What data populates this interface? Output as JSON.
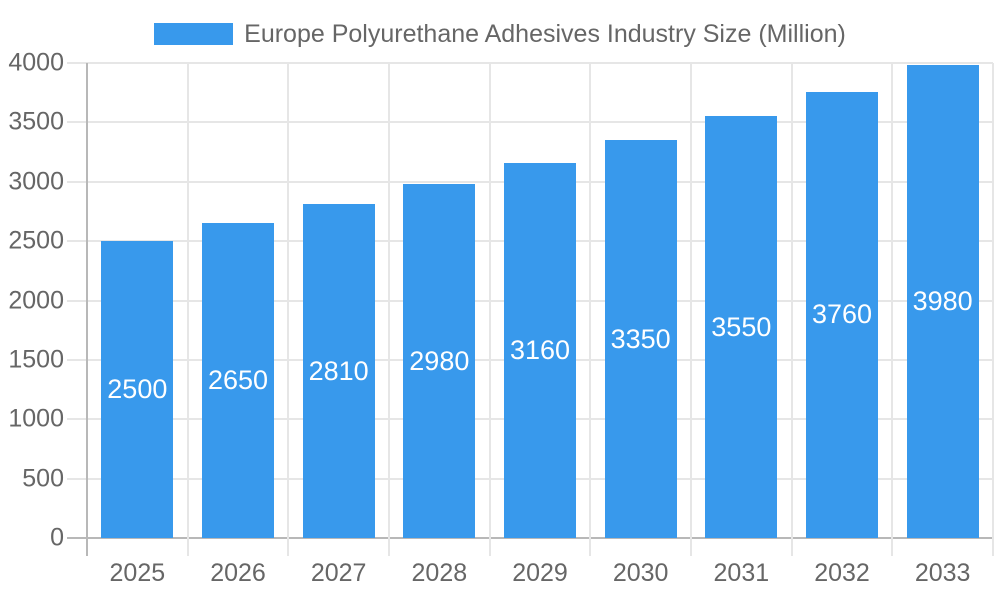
{
  "legend": {
    "label": "Europe Polyurethane Adhesives Industry Size (Million)"
  },
  "chart_data": {
    "type": "bar",
    "title": "Europe Polyurethane Adhesives Industry Size (Million)",
    "categories": [
      "2025",
      "2026",
      "2027",
      "2028",
      "2029",
      "2030",
      "2031",
      "2032",
      "2033"
    ],
    "values": [
      2500,
      2650,
      2810,
      2980,
      3160,
      3350,
      3550,
      3760,
      3980
    ],
    "value_labels": [
      "2500",
      "2650",
      "2810",
      "2980",
      "3160",
      "3350",
      "3550",
      "3760",
      "3980"
    ],
    "xlabel": "",
    "ylabel": "",
    "ylim": [
      0,
      4000
    ],
    "ytick_step": 500,
    "ytick_labels": [
      "0",
      "500",
      "1000",
      "1500",
      "2000",
      "2500",
      "3000",
      "3500",
      "4000"
    ],
    "grid": true,
    "legend_position": "top",
    "value_labels_inside_bars": true
  },
  "colors": {
    "bar": "#3899EC",
    "grid": "#E6E6E6",
    "axis": "#B8B8B8",
    "tick_text": "#666666",
    "value_label": "#FFFFFF",
    "background": "#FFFFFF"
  }
}
